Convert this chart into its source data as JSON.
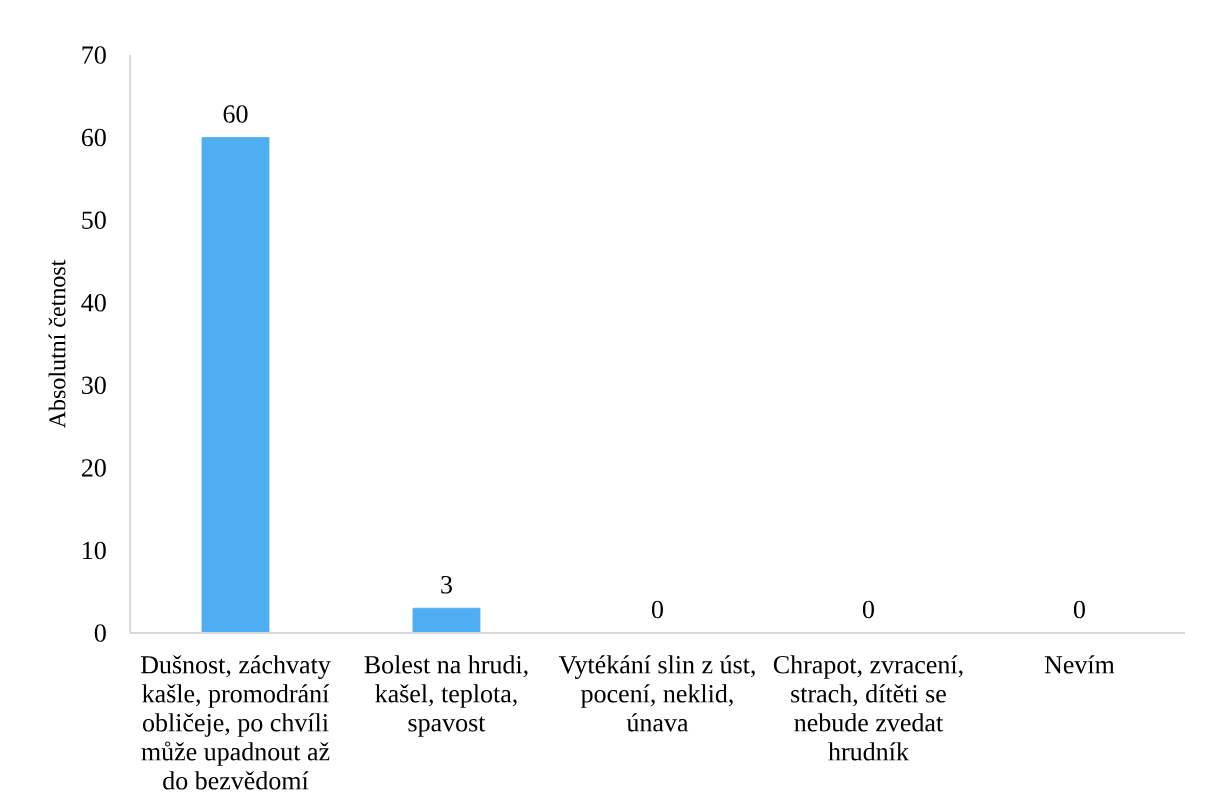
{
  "chart_data": {
    "type": "bar",
    "ylabel": "Absolutní četnost",
    "categories": [
      "Dušnost, záchvaty kašle, promodrání obličeje, po chvíli může upadnout až do bezvědomí",
      "Bolest na hrudi, kašel, teplota, spavost",
      "Vytékání slin z úst, pocení, neklid, únava",
      "Chrapot, zvracení, strach, dítěti se nebude zvedat hrudník",
      "Nevím"
    ],
    "values": [
      60,
      3,
      0,
      0,
      0
    ],
    "color": "#4fadf2",
    "ylim": [
      0,
      70
    ],
    "yticks": [
      0,
      10,
      20,
      30,
      40,
      50,
      60,
      70
    ],
    "data_labels": true
  }
}
